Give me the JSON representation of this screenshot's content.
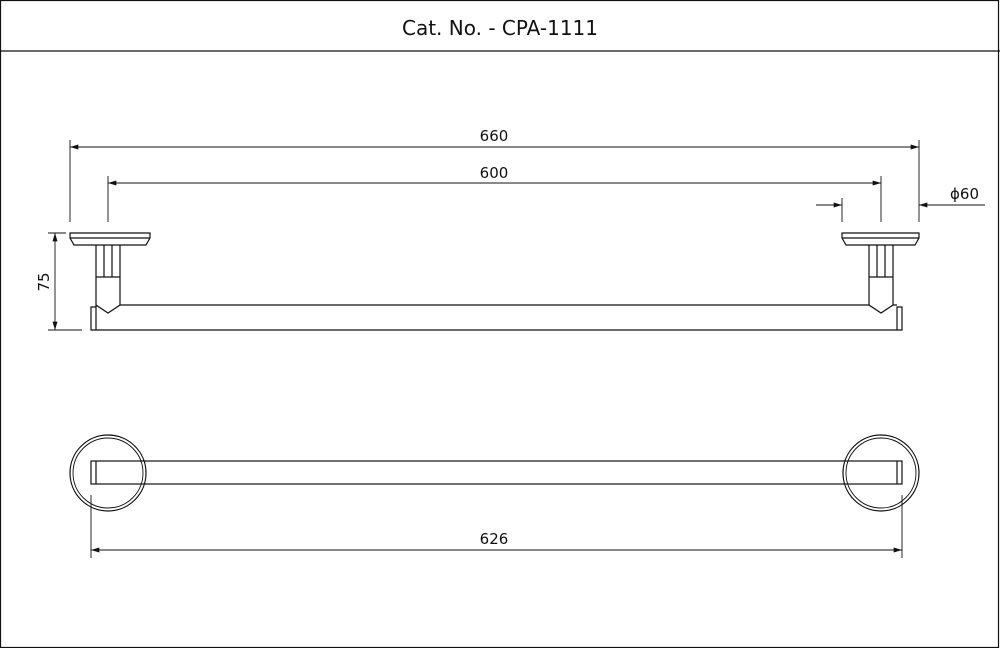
{
  "header": {
    "title": "Cat. No. - CPA-1111"
  },
  "dimensions": {
    "overall_length": "660",
    "center_distance": "600",
    "flange_diameter": "ϕ60",
    "projection": "75",
    "bar_length": "626"
  }
}
